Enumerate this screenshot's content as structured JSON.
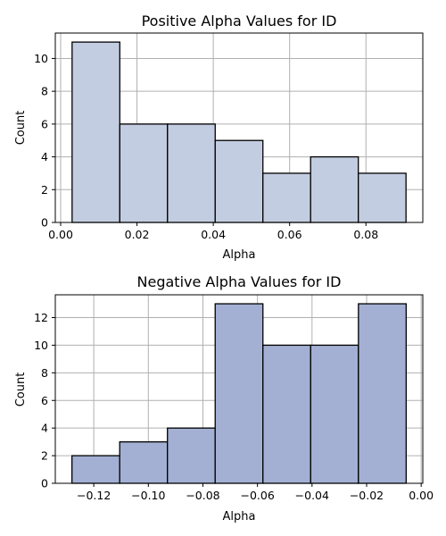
{
  "chart_data": [
    {
      "type": "bar",
      "title": "Positive Alpha Values for ID",
      "xlabel": "Alpha",
      "ylabel": "Count",
      "bin_edges": [
        0.003,
        0.0155,
        0.028,
        0.0405,
        0.053,
        0.0655,
        0.078,
        0.0905
      ],
      "values": [
        11,
        6,
        6,
        5,
        3,
        4,
        3
      ],
      "xlim": [
        -0.0014,
        0.0949
      ],
      "ylim": [
        0,
        11.55
      ],
      "xticks": [
        0.0,
        0.02,
        0.04,
        0.06,
        0.08
      ],
      "xtick_labels": [
        "0.00",
        "0.02",
        "0.04",
        "0.06",
        "0.08"
      ],
      "yticks": [
        0,
        2,
        4,
        6,
        8,
        10
      ],
      "ytick_labels": [
        "0",
        "2",
        "4",
        "6",
        "8",
        "10"
      ],
      "color": "#c3cde1",
      "grid": true
    },
    {
      "type": "bar",
      "title": "Negative Alpha Values for ID",
      "xlabel": "Alpha",
      "ylabel": "Count",
      "bin_edges": [
        -0.128,
        -0.1105,
        -0.093,
        -0.0755,
        -0.058,
        -0.0405,
        -0.023,
        -0.0055
      ],
      "values": [
        2,
        3,
        4,
        13,
        10,
        10,
        13
      ],
      "xlim": [
        -0.1341,
        0.0006
      ],
      "ylim": [
        0,
        13.65
      ],
      "xticks": [
        -0.12,
        -0.1,
        -0.08,
        -0.06,
        -0.04,
        -0.02,
        0.0
      ],
      "xtick_labels": [
        "−0.12",
        "−0.10",
        "−0.08",
        "−0.06",
        "−0.04",
        "−0.02",
        "0.00"
      ],
      "yticks": [
        0,
        2,
        4,
        6,
        8,
        10,
        12
      ],
      "ytick_labels": [
        "0",
        "2",
        "4",
        "6",
        "8",
        "10",
        "12"
      ],
      "color": "#a3b0d4",
      "grid": true
    }
  ]
}
